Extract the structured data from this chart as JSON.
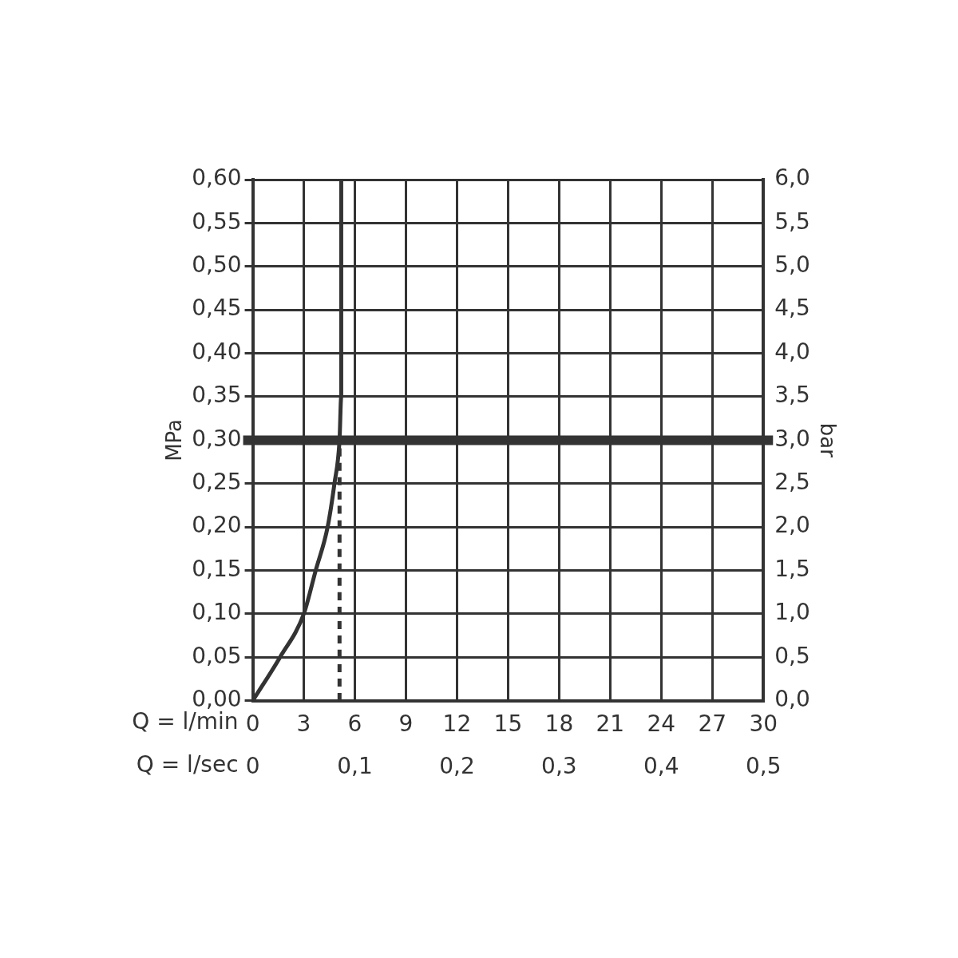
{
  "chart_data": {
    "type": "line",
    "xlabel": "Q = l/min",
    "x2label": "Q = l/sec",
    "ylabel": "MPa",
    "y2label": "bar",
    "xlim": [
      0,
      30
    ],
    "xticks": [
      0,
      3,
      6,
      9,
      12,
      15,
      18,
      21,
      24,
      27,
      30
    ],
    "x2lim": [
      0,
      0.5
    ],
    "x2ticks": [
      {
        "value": 0,
        "label": "0"
      },
      {
        "value": 0.1,
        "label": "0,1"
      },
      {
        "value": 0.2,
        "label": "0,2"
      },
      {
        "value": 0.3,
        "label": "0,3"
      },
      {
        "value": 0.4,
        "label": "0,4"
      },
      {
        "value": 0.5,
        "label": "0,5"
      }
    ],
    "ylim": [
      0,
      0.6
    ],
    "yticks": [
      {
        "value": 0,
        "label": "0,00"
      },
      {
        "value": 0.05,
        "label": "0,05"
      },
      {
        "value": 0.1,
        "label": "0,10"
      },
      {
        "value": 0.15,
        "label": "0,15"
      },
      {
        "value": 0.2,
        "label": "0,20"
      },
      {
        "value": 0.25,
        "label": "0,25"
      },
      {
        "value": 0.3,
        "label": "0,30"
      },
      {
        "value": 0.35,
        "label": "0,35"
      },
      {
        "value": 0.4,
        "label": "0,40"
      },
      {
        "value": 0.45,
        "label": "0,45"
      },
      {
        "value": 0.5,
        "label": "0,50"
      },
      {
        "value": 0.55,
        "label": "0,55"
      },
      {
        "value": 0.6,
        "label": "0,60"
      }
    ],
    "y2lim": [
      0,
      6
    ],
    "y2ticks": [
      {
        "value": 0,
        "label": "0,0"
      },
      {
        "value": 0.5,
        "label": "0,5"
      },
      {
        "value": 1,
        "label": "1,0"
      },
      {
        "value": 1.5,
        "label": "1,5"
      },
      {
        "value": 2,
        "label": "2,0"
      },
      {
        "value": 2.5,
        "label": "2,5"
      },
      {
        "value": 3,
        "label": "3,0"
      },
      {
        "value": 3.5,
        "label": "3,5"
      },
      {
        "value": 4,
        "label": "4,0"
      },
      {
        "value": 4.5,
        "label": "4,5"
      },
      {
        "value": 5,
        "label": "5,0"
      },
      {
        "value": 5.5,
        "label": "5,5"
      },
      {
        "value": 6,
        "label": "6,0"
      }
    ],
    "grid": true,
    "legend": false,
    "marker": "none",
    "series": [
      {
        "color": "#333333",
        "line_style": "solid",
        "x": [
          0,
          1.6,
          3,
          3.7,
          4.4,
          4.8,
          5.1,
          5.2,
          5.2,
          5.2,
          5.2
        ],
        "values": [
          0,
          0.05,
          0.1,
          0.15,
          0.2,
          0.25,
          0.3,
          0.35,
          0.4,
          0.5,
          0.6
        ]
      },
      {
        "color": "#333333",
        "line_style": "dashed",
        "x": [
          5.1,
          5.1
        ],
        "values": [
          0,
          0.3
        ]
      }
    ],
    "ref_lines": [
      {
        "axis": "y",
        "value": 0.3,
        "color": "#333333"
      }
    ]
  }
}
